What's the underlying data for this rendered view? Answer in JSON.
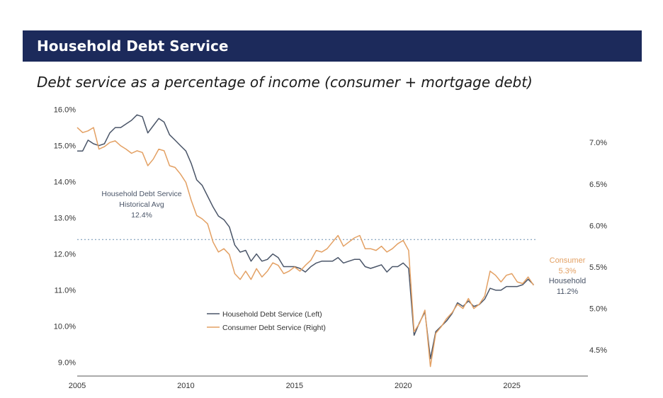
{
  "header": {
    "title": "Household Debt Service"
  },
  "subtitle": "Debt service as a percentage of income (consumer + mortgage debt)",
  "chart_data": {
    "type": "line",
    "title": "Household Debt Service",
    "subtitle": "Debt service as a percentage of income (consumer + mortgage debt)",
    "xlabel": "",
    "xlim": [
      2005,
      2028.5
    ],
    "x_ticks": [
      "2005",
      "2010",
      "2015",
      "2020",
      "2025"
    ],
    "y_left": {
      "label": "",
      "lim": [
        8.7,
        16.05
      ],
      "ticks": [
        "16.0%",
        "15.0%",
        "14.0%",
        "13.0%",
        "12.0%",
        "11.0%",
        "10.0%",
        "9.0%"
      ]
    },
    "y_right": {
      "label": "",
      "lim": [
        4.22,
        7.42
      ],
      "ticks": [
        "7.0%",
        "6.5%",
        "6.0%",
        "5.5%",
        "5.0%",
        "4.5%"
      ]
    },
    "grid": false,
    "legend_position": "lower-left",
    "series": [
      {
        "name": "Household Debt Service (Left)",
        "axis": "left",
        "color": "#4a5568",
        "points": [
          [
            2005.0,
            14.85
          ],
          [
            2005.25,
            14.85
          ],
          [
            2005.5,
            15.15
          ],
          [
            2005.75,
            15.05
          ],
          [
            2006.0,
            15.0
          ],
          [
            2006.25,
            15.05
          ],
          [
            2006.5,
            15.35
          ],
          [
            2006.75,
            15.5
          ],
          [
            2007.0,
            15.5
          ],
          [
            2007.25,
            15.6
          ],
          [
            2007.5,
            15.7
          ],
          [
            2007.75,
            15.85
          ],
          [
            2008.0,
            15.8
          ],
          [
            2008.25,
            15.35
          ],
          [
            2008.5,
            15.55
          ],
          [
            2008.75,
            15.75
          ],
          [
            2009.0,
            15.65
          ],
          [
            2009.25,
            15.3
          ],
          [
            2009.5,
            15.15
          ],
          [
            2009.75,
            15.0
          ],
          [
            2010.0,
            14.85
          ],
          [
            2010.25,
            14.5
          ],
          [
            2010.5,
            14.05
          ],
          [
            2010.75,
            13.9
          ],
          [
            2011.0,
            13.6
          ],
          [
            2011.25,
            13.3
          ],
          [
            2011.5,
            13.05
          ],
          [
            2011.75,
            12.95
          ],
          [
            2012.0,
            12.75
          ],
          [
            2012.25,
            12.25
          ],
          [
            2012.5,
            12.05
          ],
          [
            2012.75,
            12.1
          ],
          [
            2013.0,
            11.8
          ],
          [
            2013.25,
            12.0
          ],
          [
            2013.5,
            11.8
          ],
          [
            2013.75,
            11.85
          ],
          [
            2014.0,
            12.0
          ],
          [
            2014.25,
            11.9
          ],
          [
            2014.5,
            11.65
          ],
          [
            2014.75,
            11.65
          ],
          [
            2015.0,
            11.65
          ],
          [
            2015.25,
            11.6
          ],
          [
            2015.5,
            11.5
          ],
          [
            2015.75,
            11.65
          ],
          [
            2016.0,
            11.75
          ],
          [
            2016.25,
            11.8
          ],
          [
            2016.5,
            11.8
          ],
          [
            2016.75,
            11.8
          ],
          [
            2017.0,
            11.9
          ],
          [
            2017.25,
            11.75
          ],
          [
            2017.5,
            11.8
          ],
          [
            2017.75,
            11.85
          ],
          [
            2018.0,
            11.85
          ],
          [
            2018.25,
            11.65
          ],
          [
            2018.5,
            11.6
          ],
          [
            2018.75,
            11.65
          ],
          [
            2019.0,
            11.7
          ],
          [
            2019.25,
            11.5
          ],
          [
            2019.5,
            11.65
          ],
          [
            2019.75,
            11.65
          ],
          [
            2020.0,
            11.75
          ],
          [
            2020.25,
            11.6
          ],
          [
            2020.5,
            9.75
          ],
          [
            2020.75,
            10.1
          ],
          [
            2021.0,
            10.4
          ],
          [
            2021.25,
            9.1
          ],
          [
            2021.5,
            9.85
          ],
          [
            2021.75,
            10.0
          ],
          [
            2022.0,
            10.15
          ],
          [
            2022.25,
            10.35
          ],
          [
            2022.5,
            10.65
          ],
          [
            2022.75,
            10.55
          ],
          [
            2023.0,
            10.7
          ],
          [
            2023.25,
            10.55
          ],
          [
            2023.5,
            10.6
          ],
          [
            2023.75,
            10.75
          ],
          [
            2024.0,
            11.05
          ],
          [
            2024.25,
            11.0
          ],
          [
            2024.5,
            11.0
          ],
          [
            2024.75,
            11.1
          ],
          [
            2025.0,
            11.1
          ],
          [
            2025.25,
            11.1
          ],
          [
            2025.5,
            11.15
          ],
          [
            2025.75,
            11.3
          ],
          [
            2026.0,
            11.15
          ]
        ]
      },
      {
        "name": "Consumer Debt Service (Right)",
        "axis": "right",
        "color": "#e3a063",
        "points": [
          [
            2005.0,
            7.18
          ],
          [
            2005.25,
            7.12
          ],
          [
            2005.5,
            7.14
          ],
          [
            2005.75,
            7.18
          ],
          [
            2006.0,
            6.92
          ],
          [
            2006.25,
            6.95
          ],
          [
            2006.5,
            7.0
          ],
          [
            2006.75,
            7.02
          ],
          [
            2007.0,
            6.96
          ],
          [
            2007.25,
            6.92
          ],
          [
            2007.5,
            6.87
          ],
          [
            2007.75,
            6.9
          ],
          [
            2008.0,
            6.88
          ],
          [
            2008.25,
            6.72
          ],
          [
            2008.5,
            6.8
          ],
          [
            2008.75,
            6.92
          ],
          [
            2009.0,
            6.9
          ],
          [
            2009.25,
            6.72
          ],
          [
            2009.5,
            6.7
          ],
          [
            2009.75,
            6.62
          ],
          [
            2010.0,
            6.52
          ],
          [
            2010.25,
            6.3
          ],
          [
            2010.5,
            6.12
          ],
          [
            2010.75,
            6.08
          ],
          [
            2011.0,
            6.02
          ],
          [
            2011.25,
            5.8
          ],
          [
            2011.5,
            5.68
          ],
          [
            2011.75,
            5.72
          ],
          [
            2012.0,
            5.65
          ],
          [
            2012.25,
            5.42
          ],
          [
            2012.5,
            5.35
          ],
          [
            2012.75,
            5.45
          ],
          [
            2013.0,
            5.35
          ],
          [
            2013.25,
            5.48
          ],
          [
            2013.5,
            5.38
          ],
          [
            2013.75,
            5.45
          ],
          [
            2014.0,
            5.55
          ],
          [
            2014.25,
            5.52
          ],
          [
            2014.5,
            5.42
          ],
          [
            2014.75,
            5.45
          ],
          [
            2015.0,
            5.5
          ],
          [
            2015.25,
            5.45
          ],
          [
            2015.5,
            5.52
          ],
          [
            2015.75,
            5.58
          ],
          [
            2016.0,
            5.7
          ],
          [
            2016.25,
            5.68
          ],
          [
            2016.5,
            5.72
          ],
          [
            2016.75,
            5.8
          ],
          [
            2017.0,
            5.88
          ],
          [
            2017.25,
            5.75
          ],
          [
            2017.5,
            5.8
          ],
          [
            2017.75,
            5.85
          ],
          [
            2018.0,
            5.88
          ],
          [
            2018.25,
            5.72
          ],
          [
            2018.5,
            5.72
          ],
          [
            2018.75,
            5.7
          ],
          [
            2019.0,
            5.75
          ],
          [
            2019.25,
            5.68
          ],
          [
            2019.5,
            5.72
          ],
          [
            2019.75,
            5.78
          ],
          [
            2020.0,
            5.82
          ],
          [
            2020.25,
            5.7
          ],
          [
            2020.5,
            4.72
          ],
          [
            2020.75,
            4.82
          ],
          [
            2021.0,
            4.98
          ],
          [
            2021.25,
            4.3
          ],
          [
            2021.5,
            4.7
          ],
          [
            2021.75,
            4.78
          ],
          [
            2022.0,
            4.88
          ],
          [
            2022.25,
            4.95
          ],
          [
            2022.5,
            5.05
          ],
          [
            2022.75,
            5.0
          ],
          [
            2023.0,
            5.12
          ],
          [
            2023.25,
            5.0
          ],
          [
            2023.5,
            5.05
          ],
          [
            2023.75,
            5.15
          ],
          [
            2024.0,
            5.45
          ],
          [
            2024.25,
            5.4
          ],
          [
            2024.5,
            5.32
          ],
          [
            2024.75,
            5.4
          ],
          [
            2025.0,
            5.42
          ],
          [
            2025.25,
            5.32
          ],
          [
            2025.5,
            5.3
          ],
          [
            2025.75,
            5.38
          ],
          [
            2026.0,
            5.28
          ]
        ]
      }
    ],
    "reference_line": {
      "axis": "left",
      "value": 12.4,
      "style": "dotted",
      "color": "#6a8fb0"
    },
    "annotations": {
      "historical_avg": {
        "line1": "Household Debt Service",
        "line2": "Historical Avg",
        "line3": "12.4%"
      },
      "consumer_end": {
        "label": "Consumer",
        "value": "5.3%",
        "color": "#e3a063"
      },
      "household_end": {
        "label": "Household",
        "value": "11.2%",
        "color": "#4a5568"
      }
    }
  }
}
